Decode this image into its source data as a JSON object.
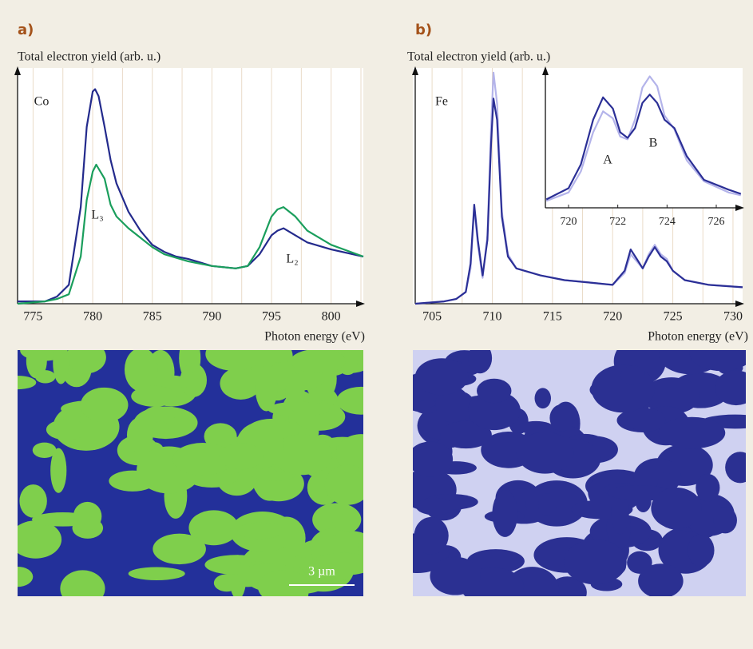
{
  "chart_data": [
    {
      "type": "line",
      "panel_label": "a)",
      "y_label": "Total electron yield (arb. u.)",
      "x_label": "Photon energy (eV)",
      "annotations": [
        "Co",
        "L₃",
        "L₂"
      ],
      "xlim": [
        773.7,
        802.7
      ],
      "xticks": [
        775,
        780,
        785,
        790,
        795,
        800
      ],
      "minor_xticks": [
        777.5,
        782.5,
        787.5,
        792.5,
        797.5,
        802.5
      ],
      "ylim": [
        0,
        1
      ],
      "grid": true,
      "series": [
        {
          "color": "#232a8c",
          "x": [
            773.7,
            776,
            777,
            778,
            779,
            779.5,
            780,
            780.2,
            780.5,
            781,
            781.5,
            782,
            783,
            784,
            785,
            786,
            787,
            788,
            790,
            792,
            793,
            794,
            795,
            795.5,
            796,
            797,
            798,
            800,
            802.7
          ],
          "values": [
            0.01,
            0.01,
            0.03,
            0.08,
            0.41,
            0.75,
            0.9,
            0.91,
            0.88,
            0.75,
            0.61,
            0.51,
            0.39,
            0.31,
            0.25,
            0.22,
            0.2,
            0.19,
            0.16,
            0.15,
            0.16,
            0.21,
            0.29,
            0.31,
            0.32,
            0.29,
            0.26,
            0.23,
            0.2
          ]
        },
        {
          "color": "#1a9e5c",
          "x": [
            773.7,
            776,
            777,
            778,
            779,
            779.5,
            780,
            780.3,
            781,
            781.5,
            782,
            783,
            784,
            785,
            786,
            788,
            790,
            792,
            793,
            794,
            795,
            795.5,
            796,
            797,
            798,
            800,
            802.7
          ],
          "values": [
            0.0,
            0.01,
            0.02,
            0.04,
            0.2,
            0.44,
            0.56,
            0.59,
            0.53,
            0.42,
            0.37,
            0.32,
            0.28,
            0.24,
            0.21,
            0.18,
            0.16,
            0.15,
            0.16,
            0.24,
            0.37,
            0.4,
            0.41,
            0.37,
            0.31,
            0.25,
            0.2
          ]
        }
      ]
    },
    {
      "type": "line",
      "panel_label": "b)",
      "y_label": "Total electron yield (arb. u.)",
      "x_label": "Photon energy (eV)",
      "annotations": [
        "Fe"
      ],
      "xlim": [
        703.6,
        730.8
      ],
      "xticks": [
        705,
        710,
        715,
        720,
        725,
        730
      ],
      "minor_xticks": [
        707.5,
        712.5,
        717.5,
        722.5,
        727.5
      ],
      "ylim": [
        0,
        1
      ],
      "grid": true,
      "x": [
        703.6,
        706,
        707,
        707.8,
        708.2,
        708.5,
        708.8,
        709.2,
        709.6,
        709.9,
        710.1,
        710.4,
        710.8,
        711.3,
        712,
        714,
        716,
        718,
        720,
        721,
        721.5,
        722,
        722.5,
        723,
        723.5,
        724,
        724.5,
        725,
        726,
        728,
        730.8
      ],
      "series": [
        {
          "color": "#b4b4ea",
          "values": [
            0.0,
            0.01,
            0.02,
            0.05,
            0.15,
            0.41,
            0.25,
            0.11,
            0.29,
            0.75,
            0.98,
            0.85,
            0.39,
            0.21,
            0.15,
            0.12,
            0.1,
            0.09,
            0.08,
            0.13,
            0.21,
            0.18,
            0.15,
            0.21,
            0.25,
            0.21,
            0.19,
            0.14,
            0.1,
            0.08,
            0.07
          ]
        },
        {
          "color": "#2b2f96",
          "values": [
            0.0,
            0.01,
            0.02,
            0.05,
            0.17,
            0.42,
            0.27,
            0.12,
            0.27,
            0.68,
            0.87,
            0.78,
            0.37,
            0.2,
            0.15,
            0.12,
            0.1,
            0.09,
            0.08,
            0.14,
            0.23,
            0.19,
            0.15,
            0.2,
            0.24,
            0.2,
            0.18,
            0.14,
            0.1,
            0.08,
            0.07
          ]
        }
      ]
    },
    {
      "type": "line",
      "annotations": [
        "A",
        "B"
      ],
      "xlim": [
        719.06,
        727.07
      ],
      "xticks": [
        720,
        722,
        724,
        726
      ],
      "ylim": [
        0,
        1
      ],
      "grid": false,
      "x": [
        719.1,
        720,
        720.5,
        721,
        721.4,
        721.8,
        722.1,
        722.4,
        722.7,
        723,
        723.3,
        723.6,
        723.9,
        724.3,
        724.8,
        725.5,
        726.5,
        727
      ],
      "series": [
        {
          "color": "#b4b4ea",
          "values": [
            0.05,
            0.11,
            0.26,
            0.54,
            0.69,
            0.64,
            0.51,
            0.49,
            0.63,
            0.86,
            0.94,
            0.87,
            0.66,
            0.56,
            0.34,
            0.19,
            0.11,
            0.09
          ]
        },
        {
          "color": "#2b2f96",
          "values": [
            0.06,
            0.14,
            0.31,
            0.63,
            0.79,
            0.71,
            0.54,
            0.5,
            0.57,
            0.75,
            0.81,
            0.75,
            0.63,
            0.57,
            0.37,
            0.2,
            0.13,
            0.1
          ]
        }
      ]
    }
  ],
  "images": {
    "scale_bar": "3 µm"
  }
}
